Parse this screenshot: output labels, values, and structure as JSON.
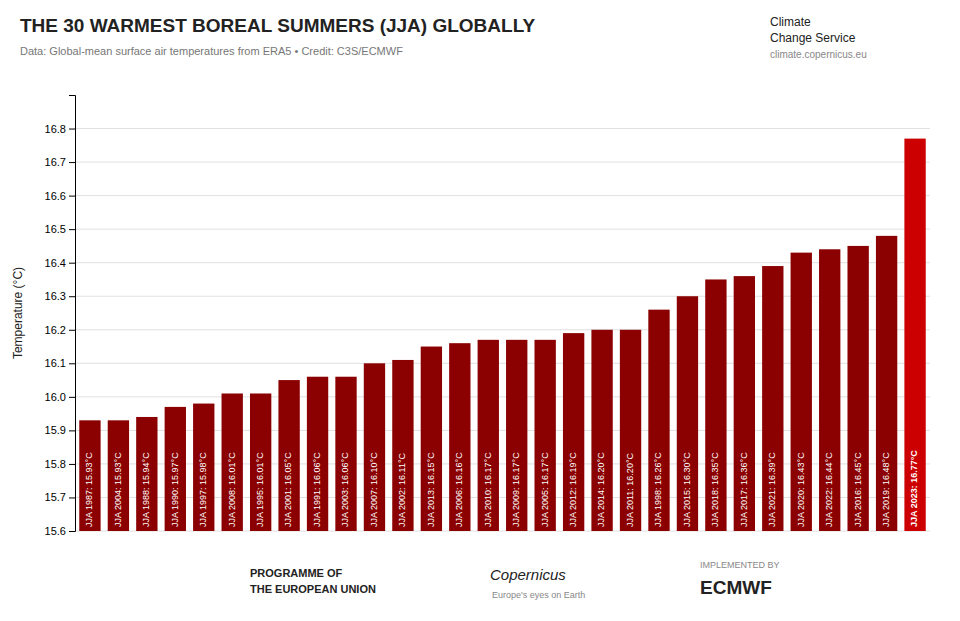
{
  "chart_data": {
    "type": "bar",
    "title": "THE 30 WARMEST BOREAL SUMMERS (JJA) GLOBALLY",
    "subtitle": "Data: Global-mean surface air temperatures from ERA5 • Credit: C3S/ECMWF",
    "y_label": "Temperature (°C)",
    "categories": [
      "JJA 1987",
      "JJA 2004",
      "JJA 1988",
      "JJA 1990",
      "JJA 1997",
      "JJA 2008",
      "JJA 1995",
      "JJA 2001",
      "JJA 1991",
      "JJA 2003",
      "JJA 2007",
      "JJA 2002",
      "JJA 2013",
      "JJA 2006",
      "JJA 2010",
      "JJA 2009",
      "JJA 2005",
      "JJA 2012",
      "JJA 2014",
      "JJA 2011",
      "JJA 1998",
      "JJA 2015",
      "JJA 2018",
      "JJA 2017",
      "JJA 2021",
      "JJA 2020",
      "JJA 2022",
      "JJA 2016",
      "JJA 2019",
      "JJA 2023"
    ],
    "values": [
      15.93,
      15.93,
      15.94,
      15.97,
      15.98,
      16.01,
      16.01,
      16.05,
      16.06,
      16.06,
      16.1,
      16.11,
      16.15,
      16.16,
      16.17,
      16.17,
      16.17,
      16.19,
      16.2,
      16.2,
      16.26,
      16.3,
      16.35,
      16.36,
      16.39,
      16.43,
      16.44,
      16.45,
      16.48,
      16.77
    ],
    "value_labels": [
      "JJA 1987: 15.93°C",
      "JJA 2004: 15.93°C",
      "JJA 1988: 15.94°C",
      "JJA 1990: 15.97°C",
      "JJA 1997: 15.98°C",
      "JJA 2008: 16.01°C",
      "JJA 1995: 16.01°C",
      "JJA 2001: 16.05°C",
      "JJA 1991: 16.06°C",
      "JJA 2003: 16.06°C",
      "JJA 2007: 16.10°C",
      "JJA 2002: 16.11°C",
      "JJA 2013: 16.15°C",
      "JJA 2006: 16.16°C",
      "JJA 2010: 16.17°C",
      "JJA 2009: 16.17°C",
      "JJA 2005: 16.17°C",
      "JJA 2012: 16.19°C",
      "JJA 2014: 16.20°C",
      "JJA 2011: 16.20°C",
      "JJA 1998: 16.26°C",
      "JJA 2015: 16.30°C",
      "JJA 2018: 16.35°C",
      "JJA 2017: 16.36°C",
      "JJA 2021: 16.39°C",
      "JJA 2020: 16.43°C",
      "JJA 2022: 16.44°C",
      "JJA 2016: 16.45°C",
      "JJA 2019: 16.48°C",
      "JJA 2023: 16.77°C"
    ],
    "data_labels": true,
    "colors": [
      "#8b0000",
      "#8b0000",
      "#8b0000",
      "#8b0000",
      "#8b0000",
      "#8b0000",
      "#8b0000",
      "#8b0000",
      "#8b0000",
      "#8b0000",
      "#8b0000",
      "#8b0000",
      "#8b0000",
      "#8b0000",
      "#8b0000",
      "#8b0000",
      "#8b0000",
      "#8b0000",
      "#8b0000",
      "#8b0000",
      "#8b0000",
      "#8b0000",
      "#8b0000",
      "#8b0000",
      "#8b0000",
      "#8b0000",
      "#8b0000",
      "#8b0000",
      "#8b0000",
      "#cc0000"
    ],
    "ylim": [
      15.6,
      16.9
    ],
    "yticks": [
      15.6,
      15.7,
      15.8,
      15.9,
      {
        "value": 16.0,
        "label": "16.0"
      },
      16.1,
      16.2,
      16.3,
      16.4,
      16.5,
      16.6,
      16.7,
      16.8
    ],
    "grid": true,
    "tick_labels": "y",
    "annotations": [
      "Climate",
      "Change Service",
      "climate.copernicus.eu",
      "PROGRAMME OF",
      "THE EUROPEAN UNION",
      "Copernicus",
      "Europe's eyes on Earth",
      "IMPLEMENTED BY",
      "ECMWF"
    ]
  }
}
